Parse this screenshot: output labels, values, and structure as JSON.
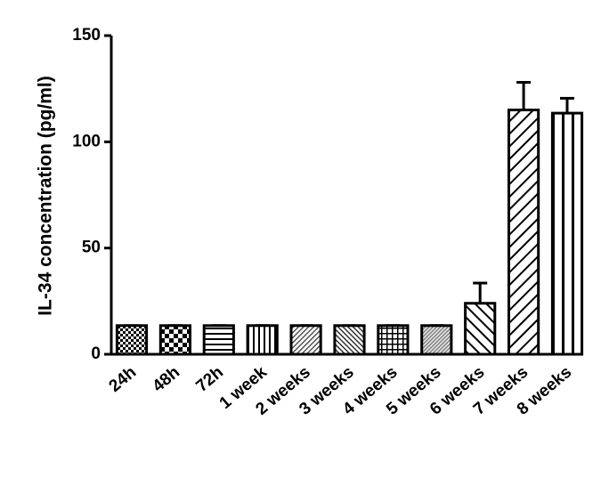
{
  "chart_data": {
    "type": "bar",
    "y_label": "IL-34 concentration (pg/ml)",
    "categories": [
      "24h",
      "48h",
      "72h",
      "1 week",
      "2 weeks",
      "3 weeks",
      "4 weeks",
      "5 weeks",
      "6 weeks",
      "7 weeks",
      "8 weeks"
    ],
    "values": [
      13.5,
      13.5,
      13.5,
      13.5,
      13.5,
      13.5,
      13.5,
      13.5,
      24,
      115,
      113.5
    ],
    "errors": [
      0,
      0,
      0,
      0,
      0,
      0,
      0,
      0,
      9.5,
      13,
      7
    ],
    "color": "#000000",
    "ylim": [
      0,
      150
    ],
    "yticks": [
      0,
      50,
      100,
      150
    ]
  }
}
